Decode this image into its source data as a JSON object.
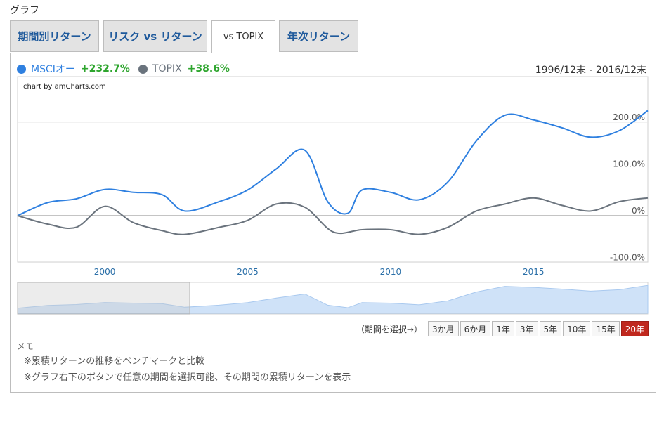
{
  "section_title": "グラフ",
  "tabs": [
    {
      "label": "期間別リターン"
    },
    {
      "label": "リスク vs リターン"
    },
    {
      "label": "vs TOPIX"
    },
    {
      "label": "年次リターン"
    }
  ],
  "legend": {
    "series1_name": "MSCIオー",
    "series1_value": "+232.7%",
    "series2_name": "TOPIX",
    "series2_value": "+38.6%"
  },
  "date_range": "1996/12末 - 2016/12末",
  "credit": "chart by amCharts.com",
  "period_selector": {
    "label": "（期間を選択→）",
    "buttons": [
      "3か月",
      "6か月",
      "1年",
      "3年",
      "5年",
      "10年",
      "15年",
      "20年"
    ],
    "active": "20年"
  },
  "memo": {
    "title": "メモ",
    "lines": [
      "※累積リターンの推移をベンチマークと比較",
      "※グラフ右下のボタンで任意の期間を選択可能、その期間の累積リターンを表示"
    ]
  },
  "colors": {
    "series1": "#2f80e0",
    "series2": "#6a737d",
    "positive": "#2ea52e",
    "active_button": "#c0281e"
  },
  "chart_data": {
    "type": "line",
    "y_ticks": [
      "-100.0%",
      "0%",
      "100.0%",
      "200.0%"
    ],
    "x_ticks": [
      "2000",
      "2005",
      "2010",
      "2015"
    ],
    "ylim": [
      -100,
      250
    ],
    "xlim": [
      1996.95,
      2019.0
    ],
    "series": [
      {
        "name": "MSCIオー",
        "color": "#2f80e0",
        "x": [
          1996.95,
          1998.0,
          1999.0,
          2000.0,
          2001.0,
          2002.0,
          2002.8,
          2004.0,
          2005.0,
          2006.0,
          2007.0,
          2007.8,
          2008.5,
          2009.0,
          2010.0,
          2011.0,
          2012.0,
          2013.0,
          2014.0,
          2015.0,
          2016.0,
          2017.0,
          2018.0,
          2019.0
        ],
        "values": [
          0,
          28,
          36,
          56,
          50,
          45,
          10,
          30,
          55,
          100,
          140,
          30,
          5,
          55,
          50,
          34,
          72,
          160,
          215,
          205,
          188,
          168,
          182,
          225
        ]
      },
      {
        "name": "TOPIX",
        "color": "#6a737d",
        "x": [
          1996.95,
          1998.0,
          1999.0,
          2000.0,
          2001.0,
          2002.0,
          2002.8,
          2004.0,
          2005.0,
          2006.0,
          2007.0,
          2008.0,
          2009.0,
          2010.0,
          2011.0,
          2012.0,
          2013.0,
          2014.0,
          2015.0,
          2016.0,
          2017.0,
          2018.0,
          2019.0
        ],
        "values": [
          0,
          -18,
          -25,
          20,
          -15,
          -32,
          -40,
          -25,
          -10,
          25,
          18,
          -35,
          -30,
          -30,
          -40,
          -25,
          10,
          25,
          38,
          22,
          10,
          30,
          38
        ]
      }
    ]
  }
}
